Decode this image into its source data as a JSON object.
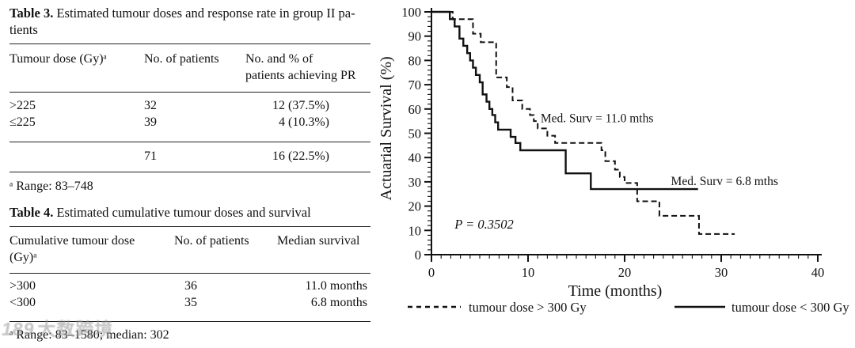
{
  "watermark": {
    "logo": "189",
    "text": "大数跨境"
  },
  "table3": {
    "title_bold": "Table 3.",
    "title_rest": " Estimated tumour doses and response rate in group II pa-\ntients",
    "columns": [
      "Tumour dose (Gy)ᵃ",
      "No. of patients",
      "No. and % of\npatients achieving PR"
    ],
    "rows": [
      [
        ">225",
        "32",
        "12 (37.5%)"
      ],
      [
        "≤225",
        "39",
        "4 (10.3%)"
      ]
    ],
    "total_row": [
      "",
      "71",
      "16 (22.5%)"
    ],
    "footnote": "ᵃ Range: 83–748"
  },
  "table4": {
    "title_bold": "Table 4.",
    "title_rest": " Estimated cumulative tumour doses and survival",
    "columns": [
      "Cumulative tumour dose\n(Gy)ᵃ",
      "No. of patients",
      "Median survival"
    ],
    "rows": [
      [
        ">300",
        "36",
        "11.0 months"
      ],
      [
        "<300",
        "35",
        "6.8 months"
      ]
    ],
    "footnote": "ᵃ Range: 83–1580; median: 302"
  },
  "chart_data": {
    "type": "line",
    "subtype": "kaplan-meier-step",
    "title": "",
    "xlabel": "Time (months)",
    "ylabel": "Actuarial Survival (%)",
    "xlim": [
      0,
      40
    ],
    "ylim": [
      0,
      100
    ],
    "x_major_ticks": [
      0,
      10,
      20,
      30,
      40
    ],
    "x_minor_step": 1,
    "y_major_step": 10,
    "y_minor_step": 2,
    "grid": false,
    "line_color": "#111111",
    "legend_position": "bottom",
    "series": [
      {
        "name": "tumour dose > 300 Gy",
        "style": "dashed",
        "median_survival_months": 11.0,
        "n_patients": 36,
        "end_time": 31.4,
        "steps": [
          [
            0,
            100
          ],
          [
            2.2,
            97
          ],
          [
            4.3,
            91
          ],
          [
            5.1,
            87.5
          ],
          [
            6.7,
            73
          ],
          [
            7.8,
            69
          ],
          [
            8.4,
            63.5
          ],
          [
            9.4,
            60
          ],
          [
            10.2,
            57.5
          ],
          [
            10.6,
            55
          ],
          [
            11.0,
            52
          ],
          [
            12.0,
            49
          ],
          [
            12.8,
            46
          ],
          [
            17.6,
            43
          ],
          [
            18.0,
            38.5
          ],
          [
            19.0,
            35
          ],
          [
            19.5,
            32
          ],
          [
            20.0,
            29.5
          ],
          [
            21.3,
            22
          ],
          [
            23.6,
            16
          ],
          [
            27.7,
            8.5
          ]
        ]
      },
      {
        "name": "tumour dose < 300 Gy",
        "style": "solid",
        "median_survival_months": 6.8,
        "n_patients": 35,
        "end_time": 27.6,
        "steps": [
          [
            0,
            100
          ],
          [
            1.9,
            97
          ],
          [
            2.4,
            94
          ],
          [
            2.9,
            89
          ],
          [
            3.3,
            86
          ],
          [
            3.7,
            83
          ],
          [
            4.0,
            80
          ],
          [
            4.3,
            77
          ],
          [
            4.6,
            74
          ],
          [
            5.0,
            71
          ],
          [
            5.3,
            66
          ],
          [
            5.7,
            63
          ],
          [
            6.0,
            60
          ],
          [
            6.3,
            57.5
          ],
          [
            6.6,
            54.5
          ],
          [
            6.9,
            51.5
          ],
          [
            8.2,
            48.5
          ],
          [
            8.7,
            46
          ],
          [
            9.2,
            43
          ],
          [
            13.9,
            33.5
          ],
          [
            16.5,
            27
          ]
        ]
      }
    ],
    "annotations": [
      {
        "text": "Med. Surv = 11.0 mths",
        "x": 11.3,
        "y": 54.5,
        "italic": false
      },
      {
        "text": "Med. Surv = 6.8 mths",
        "x": 24.8,
        "y": 28.6,
        "italic": false
      },
      {
        "text": "P = 0.3502",
        "x": 2.4,
        "y": 10.8,
        "italic": true
      }
    ]
  }
}
